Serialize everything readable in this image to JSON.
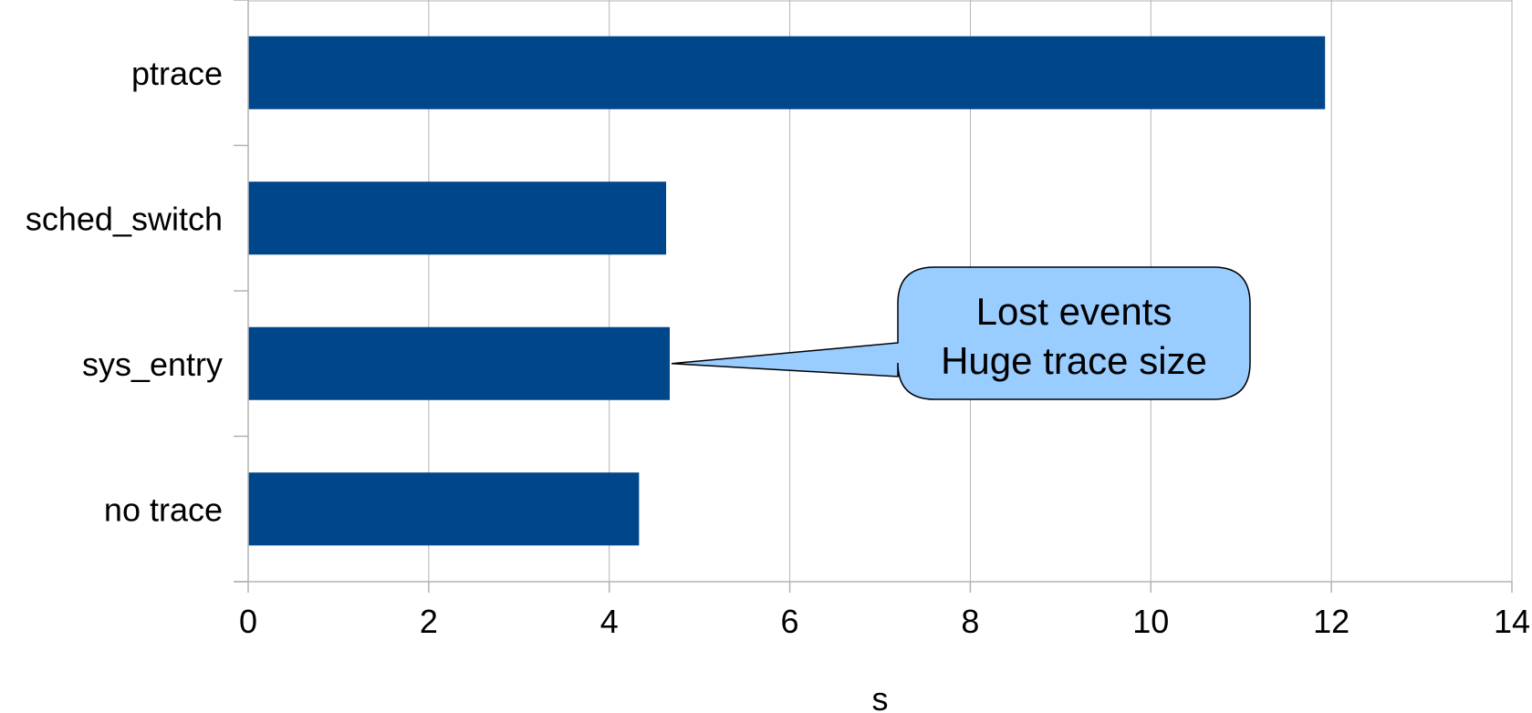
{
  "chart_data": {
    "type": "bar",
    "orientation": "horizontal",
    "title": "",
    "xlabel": "s",
    "ylabel": "",
    "categories": [
      "ptrace",
      "sched_switch",
      "sys_entry",
      "no trace"
    ],
    "values": [
      11.93,
      4.63,
      4.67,
      4.33
    ],
    "xlim": [
      0,
      14
    ],
    "xticks": [
      "0",
      "2",
      "4",
      "6",
      "8",
      "10",
      "12",
      "14"
    ],
    "grid": "vertical",
    "legend": "none",
    "bar_color": "#00468B",
    "annotation": {
      "target_category": "sys_entry",
      "lines": [
        "Lost events",
        "Huge trace size"
      ],
      "fill_color": "#99CCFF"
    }
  }
}
